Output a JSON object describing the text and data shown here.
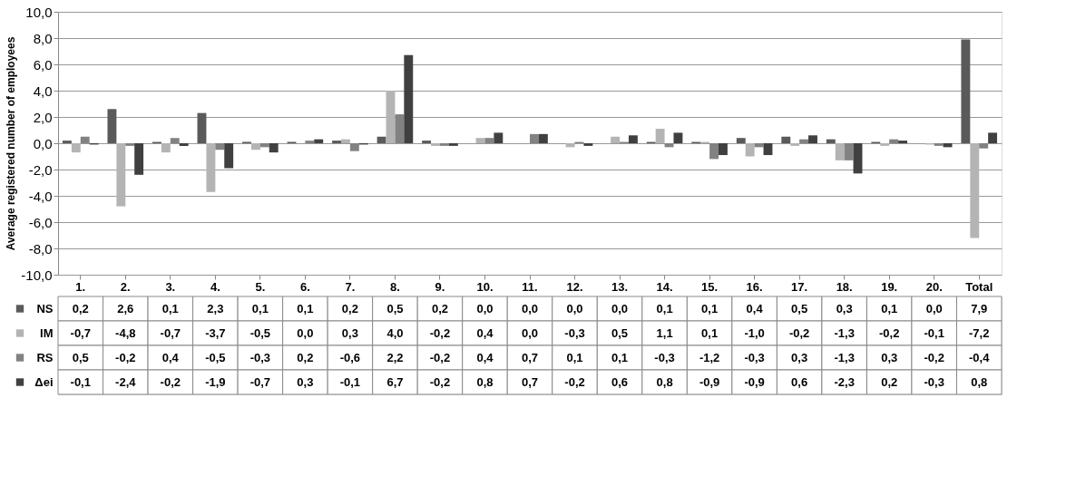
{
  "chart_data": {
    "type": "bar",
    "ylabel": "Average registered number of employees",
    "categories": [
      "1.",
      "2.",
      "3.",
      "4.",
      "5.",
      "6.",
      "7.",
      "8.",
      "9.",
      "10.",
      "11.",
      "12.",
      "13.",
      "14.",
      "15.",
      "16.",
      "17.",
      "18.",
      "19.",
      "20.",
      "Total"
    ],
    "series": [
      {
        "name": "NS",
        "color": "#5a5a5a",
        "values": [
          0.2,
          2.6,
          0.1,
          2.3,
          0.1,
          0.1,
          0.2,
          0.5,
          0.2,
          0.0,
          0.0,
          0.0,
          0.0,
          0.1,
          0.1,
          0.4,
          0.5,
          0.3,
          0.1,
          0.0,
          7.9
        ],
        "value_labels": [
          "0,2",
          "2,6",
          "0,1",
          "2,3",
          "0,1",
          "0,1",
          "0,2",
          "0,5",
          "0,2",
          "0,0",
          "0,0",
          "0,0",
          "0,0",
          "0,1",
          "0,1",
          "0,4",
          "0,5",
          "0,3",
          "0,1",
          "0,0",
          "7,9"
        ]
      },
      {
        "name": "IM",
        "color": "#b4b4b4",
        "values": [
          -0.7,
          -4.8,
          -0.7,
          -3.7,
          -0.5,
          0.0,
          0.3,
          4.0,
          -0.2,
          0.4,
          0.0,
          -0.3,
          0.5,
          1.1,
          0.1,
          -1.0,
          -0.2,
          -1.3,
          -0.2,
          -0.1,
          -7.2
        ],
        "value_labels": [
          "-0,7",
          "-4,8",
          "-0,7",
          "-3,7",
          "-0,5",
          "0,0",
          "0,3",
          "4,0",
          "-0,2",
          "0,4",
          "0,0",
          "-0,3",
          "0,5",
          "1,1",
          "0,1",
          "-1,0",
          "-0,2",
          "-1,3",
          "-0,2",
          "-0,1",
          "-7,2"
        ]
      },
      {
        "name": "RS",
        "color": "#828282",
        "values": [
          0.5,
          -0.2,
          0.4,
          -0.5,
          -0.3,
          0.2,
          -0.6,
          2.2,
          -0.2,
          0.4,
          0.7,
          0.1,
          0.1,
          -0.3,
          -1.2,
          -0.3,
          0.3,
          -1.3,
          0.3,
          -0.2,
          -0.4
        ],
        "value_labels": [
          "0,5",
          "-0,2",
          "0,4",
          "-0,5",
          "-0,3",
          "0,2",
          "-0,6",
          "2,2",
          "-0,2",
          "0,4",
          "0,7",
          "0,1",
          "0,1",
          "-0,3",
          "-1,2",
          "-0,3",
          "0,3",
          "-1,3",
          "0,3",
          "-0,2",
          "-0,4"
        ]
      },
      {
        "name": "Δei",
        "color": "#404040",
        "values": [
          -0.1,
          -2.4,
          -0.2,
          -1.9,
          -0.7,
          0.3,
          -0.1,
          6.7,
          -0.2,
          0.8,
          0.7,
          -0.2,
          0.6,
          0.8,
          -0.9,
          -0.9,
          0.6,
          -2.3,
          0.2,
          -0.3,
          0.8
        ],
        "value_labels": [
          "-0,1",
          "-2,4",
          "-0,2",
          "-1,9",
          "-0,7",
          "0,3",
          "-0,1",
          "6,7",
          "-0,2",
          "0,8",
          "0,7",
          "-0,2",
          "0,6",
          "0,8",
          "-0,9",
          "-0,9",
          "0,6",
          "-2,3",
          "0,2",
          "-0,3",
          "0,8"
        ]
      }
    ],
    "ylim": [
      -10,
      10
    ],
    "yticks": [
      {
        "value": -10,
        "label": "-10,0"
      },
      {
        "value": -8,
        "label": "-8,0"
      },
      {
        "value": -6,
        "label": "-6,0"
      },
      {
        "value": -4,
        "label": "-4,0"
      },
      {
        "value": -2,
        "label": "-2,0"
      },
      {
        "value": 0,
        "label": "0,0"
      },
      {
        "value": 2,
        "label": "2,0"
      },
      {
        "value": 4,
        "label": "4,0"
      },
      {
        "value": 6,
        "label": "6,0"
      },
      {
        "value": 8,
        "label": "8,0"
      },
      {
        "value": 10,
        "label": "10,0"
      }
    ],
    "grid": "y",
    "legend": "bottom left"
  }
}
